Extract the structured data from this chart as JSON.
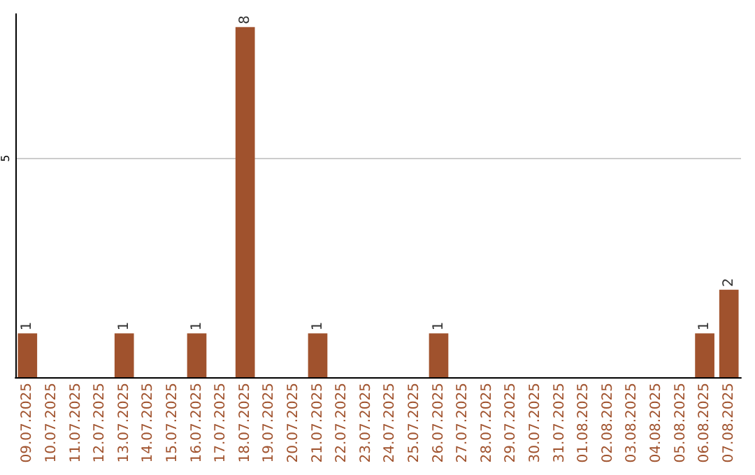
{
  "chart_data": {
    "type": "bar",
    "categories": [
      "09.07.2025",
      "10.07.2025",
      "11.07.2025",
      "12.07.2025",
      "13.07.2025",
      "14.07.2025",
      "15.07.2025",
      "16.07.2025",
      "17.07.2025",
      "18.07.2025",
      "19.07.2025",
      "20.07.2025",
      "21.07.2025",
      "22.07.2025",
      "23.07.2025",
      "24.07.2025",
      "25.07.2025",
      "26.07.2025",
      "27.07.2025",
      "28.07.2025",
      "29.07.2025",
      "30.07.2025",
      "31.07.2025",
      "01.08.2025",
      "02.08.2025",
      "03.08.2025",
      "04.08.2025",
      "05.08.2025",
      "06.08.2025",
      "07.08.2025"
    ],
    "values": [
      1,
      0,
      0,
      0,
      1,
      0,
      0,
      1,
      0,
      8,
      0,
      0,
      1,
      0,
      0,
      0,
      0,
      1,
      0,
      0,
      0,
      0,
      0,
      0,
      0,
      0,
      0,
      0,
      1,
      2
    ],
    "value_labels": [
      "1",
      null,
      null,
      null,
      "1",
      null,
      null,
      "1",
      null,
      "8",
      null,
      null,
      "1",
      null,
      null,
      null,
      null,
      "1",
      null,
      null,
      null,
      null,
      null,
      null,
      null,
      null,
      null,
      null,
      "1",
      "2"
    ],
    "color": "#a0522d",
    "ylim": [
      0,
      8.3
    ],
    "yticks": [
      5
    ],
    "grid": "y"
  }
}
